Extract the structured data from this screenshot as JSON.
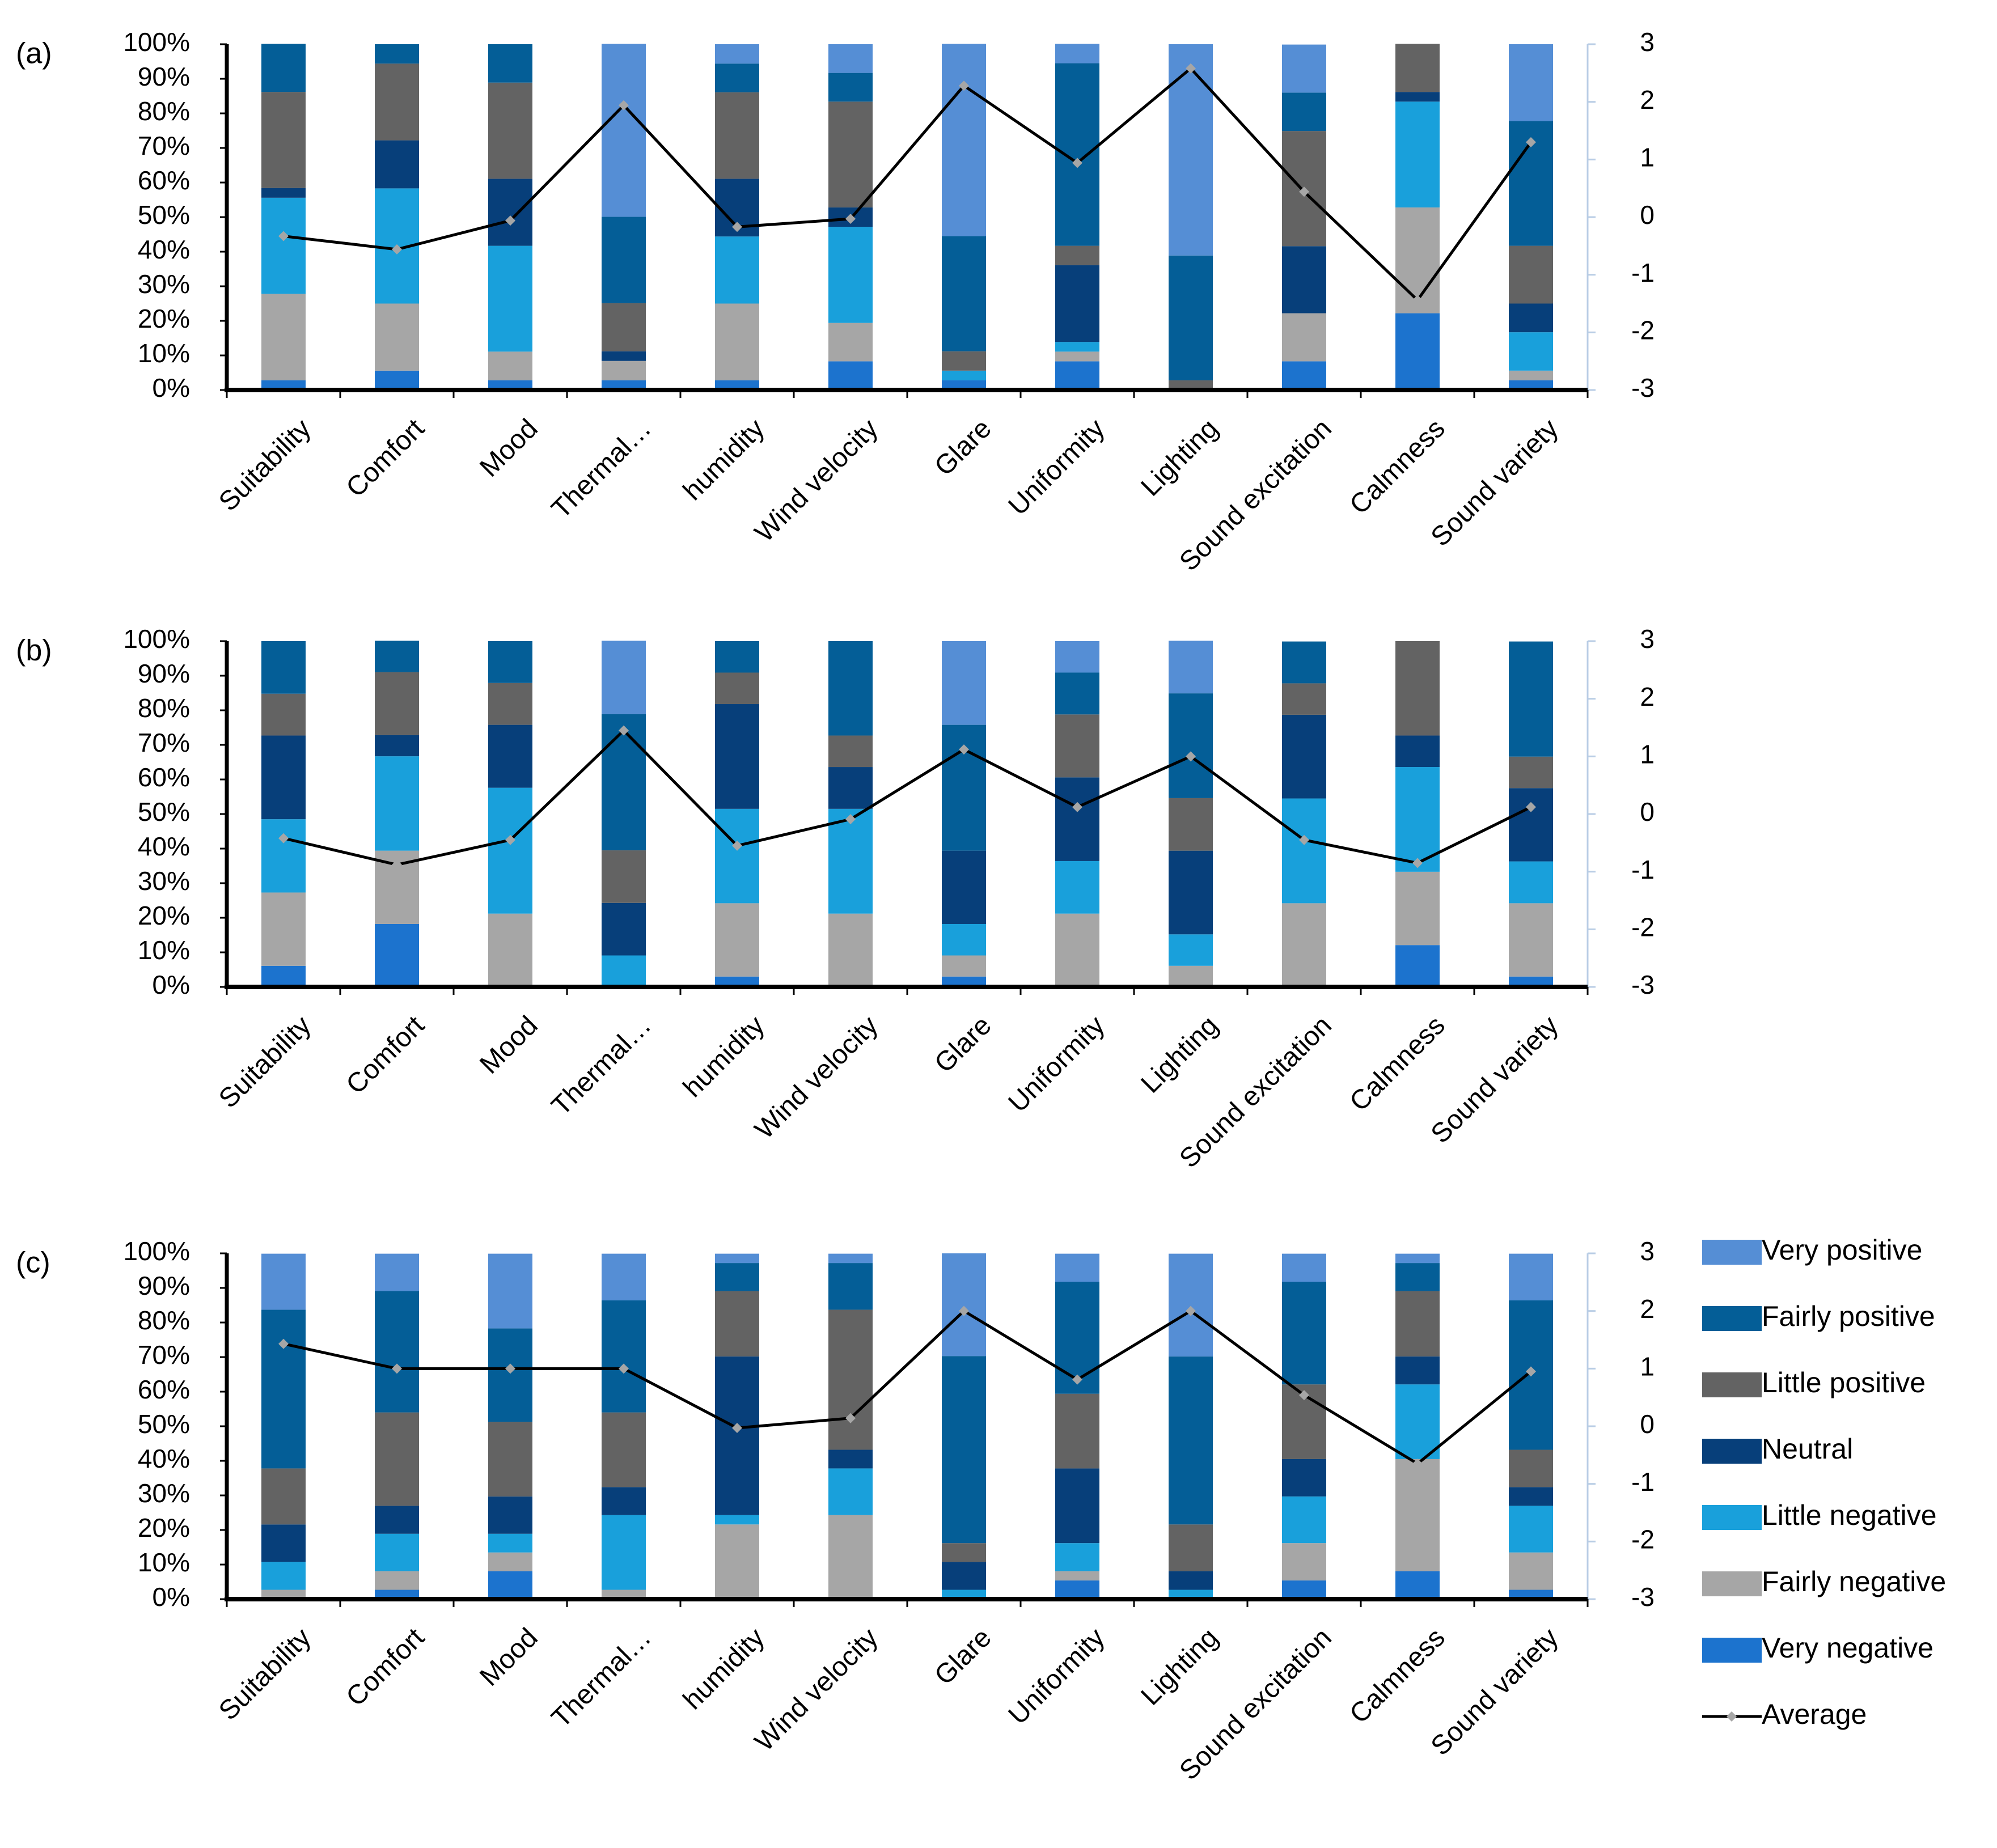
{
  "figure": {
    "legend": [
      {
        "name": "Very positive",
        "color": "#558ED5"
      },
      {
        "name": "Fairly positive",
        "color": "#045E97"
      },
      {
        "name": "Little positive",
        "color": "#636363"
      },
      {
        "name": "Neutral",
        "color": "#073F7A"
      },
      {
        "name": "Little negative",
        "color": "#19A0DB"
      },
      {
        "name": "Fairly negative",
        "color": "#A6A6A6"
      },
      {
        "name": "Very negative",
        "color": "#1C73CE"
      },
      {
        "name": "Average",
        "color": "#000000",
        "marker_color": "#A6A6A6"
      }
    ]
  },
  "chart_data": [
    {
      "panel": "(a)",
      "type": "bar",
      "stacked": true,
      "categories": [
        "Suitability",
        "Comfort",
        "Mood",
        "Thermal…",
        "humidity",
        "Wind velocity",
        "Glare",
        "Uniformity",
        "Lighting",
        "Sound excitation",
        "Calmness",
        "Sound variety"
      ],
      "y_ticks": [
        "0%",
        "10%",
        "20%",
        "30%",
        "40%",
        "50%",
        "60%",
        "70%",
        "80%",
        "90%",
        "100%"
      ],
      "y2_ticks": [
        "-3",
        "-2",
        "-1",
        "0",
        "1",
        "2",
        "3"
      ],
      "ylim": [
        0,
        100
      ],
      "y2lim": [
        -3,
        3
      ],
      "series": [
        {
          "name": "Very negative",
          "values": [
            2.8,
            5.6,
            2.8,
            2.8,
            2.8,
            8.3,
            2.8,
            8.3,
            0,
            8.3,
            22.2,
            2.8
          ]
        },
        {
          "name": "Fairly negative",
          "values": [
            25,
            19.4,
            8.3,
            5.6,
            22.2,
            11.1,
            0,
            2.8,
            0,
            13.9,
            30.6,
            2.8
          ]
        },
        {
          "name": "Little negative",
          "values": [
            27.8,
            33.3,
            30.6,
            0,
            19.4,
            27.8,
            2.8,
            2.8,
            0,
            0,
            30.6,
            11.1
          ]
        },
        {
          "name": "Neutral",
          "values": [
            2.8,
            13.9,
            19.4,
            2.8,
            16.7,
            5.6,
            0,
            22.2,
            0,
            19.4,
            2.8,
            8.3
          ]
        },
        {
          "name": "Little positive",
          "values": [
            27.8,
            22.2,
            27.8,
            13.9,
            25,
            30.6,
            5.6,
            5.6,
            2.8,
            33.3,
            13.9,
            16.7
          ]
        },
        {
          "name": "Fairly positive",
          "values": [
            13.9,
            5.6,
            11.1,
            25,
            8.3,
            8.3,
            33.3,
            52.8,
            36.1,
            11.1,
            0,
            36.1
          ]
        },
        {
          "name": "Very positive",
          "values": [
            0,
            0,
            0,
            50,
            5.6,
            8.3,
            55.6,
            5.6,
            61.1,
            13.9,
            0,
            22.2
          ]
        }
      ],
      "average": [
        -0.33,
        -0.56,
        -0.06,
        1.94,
        -0.17,
        -0.03,
        2.28,
        0.94,
        2.58,
        0.44,
        -1.44,
        1.3
      ]
    },
    {
      "panel": "(b)",
      "type": "bar",
      "stacked": true,
      "categories": [
        "Suitability",
        "Comfort",
        "Mood",
        "Thermal…",
        "humidity",
        "Wind velocity",
        "Glare",
        "Uniformity",
        "Lighting",
        "Sound excitation",
        "Calmness",
        "Sound variety"
      ],
      "y_ticks": [
        "0%",
        "10%",
        "20%",
        "30%",
        "40%",
        "50%",
        "60%",
        "70%",
        "80%",
        "90%",
        "100%"
      ],
      "y2_ticks": [
        "-3",
        "-2",
        "-1",
        "0",
        "1",
        "2",
        "3"
      ],
      "ylim": [
        0,
        100
      ],
      "y2lim": [
        -3,
        3
      ],
      "series": [
        {
          "name": "Very negative",
          "values": [
            6.1,
            18.2,
            0,
            0,
            3,
            0,
            3,
            0,
            0,
            0,
            12.1,
            3
          ]
        },
        {
          "name": "Fairly negative",
          "values": [
            21.2,
            21.2,
            21.2,
            0,
            21.2,
            21.2,
            6.1,
            21.2,
            6.1,
            24.2,
            21.2,
            21.2
          ]
        },
        {
          "name": "Little negative",
          "values": [
            21.2,
            27.3,
            36.4,
            9.1,
            27.3,
            30.3,
            9.1,
            15.2,
            9.1,
            30.3,
            30.3,
            12.1
          ]
        },
        {
          "name": "Neutral",
          "values": [
            24.2,
            6.1,
            18.2,
            15.2,
            30.3,
            12.1,
            21.2,
            24.2,
            24.2,
            24.2,
            9.1,
            21.2
          ]
        },
        {
          "name": "Little positive",
          "values": [
            12.1,
            18.2,
            12.1,
            15.2,
            9.1,
            9.1,
            0,
            18.2,
            15.2,
            9.1,
            27.3,
            9.1
          ]
        },
        {
          "name": "Fairly positive",
          "values": [
            15.2,
            9.1,
            12.1,
            39.4,
            9.1,
            27.3,
            36.4,
            12.1,
            30.3,
            12.1,
            0,
            33.3
          ]
        },
        {
          "name": "Very positive",
          "values": [
            0,
            0,
            0,
            21.2,
            0,
            0,
            24.2,
            9.1,
            15.2,
            0,
            0,
            0
          ]
        }
      ],
      "average": [
        -0.42,
        -0.88,
        -0.45,
        1.45,
        -0.55,
        -0.09,
        1.12,
        0.12,
        1,
        -0.45,
        -0.85,
        0.12
      ]
    },
    {
      "panel": "(c)",
      "type": "bar",
      "stacked": true,
      "categories": [
        "Suitability",
        "Comfort",
        "Mood",
        "Thermal…",
        "humidity",
        "Wind velocity",
        "Glare",
        "Uniformity",
        "Lighting",
        "Sound excitation",
        "Calmness",
        "Sound variety"
      ],
      "y_ticks": [
        "0%",
        "10%",
        "20%",
        "30%",
        "40%",
        "50%",
        "60%",
        "70%",
        "80%",
        "90%",
        "100%"
      ],
      "y2_ticks": [
        "-3",
        "-2",
        "-1",
        "0",
        "1",
        "2",
        "3"
      ],
      "ylim": [
        0,
        100
      ],
      "y2lim": [
        -3,
        3
      ],
      "series": [
        {
          "name": "Very negative",
          "values": [
            0,
            2.7,
            8.1,
            0,
            0,
            0,
            0,
            5.4,
            0,
            5.4,
            8.1,
            2.7
          ]
        },
        {
          "name": "Fairly negative",
          "values": [
            2.7,
            5.4,
            5.4,
            2.7,
            21.6,
            24.3,
            0,
            2.7,
            0,
            10.8,
            32.4,
            10.8
          ]
        },
        {
          "name": "Little negative",
          "values": [
            8.1,
            10.8,
            5.4,
            21.6,
            2.7,
            13.5,
            2.7,
            8.1,
            2.7,
            13.5,
            21.6,
            13.5
          ]
        },
        {
          "name": "Neutral",
          "values": [
            10.8,
            8.1,
            10.8,
            8.1,
            45.9,
            5.4,
            8.1,
            21.6,
            5.4,
            10.8,
            8.1,
            5.4
          ]
        },
        {
          "name": "Little positive",
          "values": [
            16.2,
            27,
            21.6,
            21.6,
            18.9,
            40.5,
            5.4,
            21.6,
            13.5,
            21.6,
            18.9,
            10.8
          ]
        },
        {
          "name": "Fairly positive",
          "values": [
            45.9,
            35.1,
            27,
            32.4,
            8.1,
            13.5,
            54.1,
            32.4,
            48.6,
            29.7,
            8.1,
            43.2
          ]
        },
        {
          "name": "Very positive",
          "values": [
            16.2,
            10.8,
            21.6,
            13.5,
            2.7,
            2.7,
            29.7,
            8.1,
            29.7,
            8.1,
            2.7,
            13.5
          ]
        }
      ],
      "average": [
        1.43,
        1,
        1,
        1,
        -0.03,
        0.14,
        2,
        0.81,
        2,
        0.54,
        -0.65,
        0.95
      ]
    }
  ]
}
